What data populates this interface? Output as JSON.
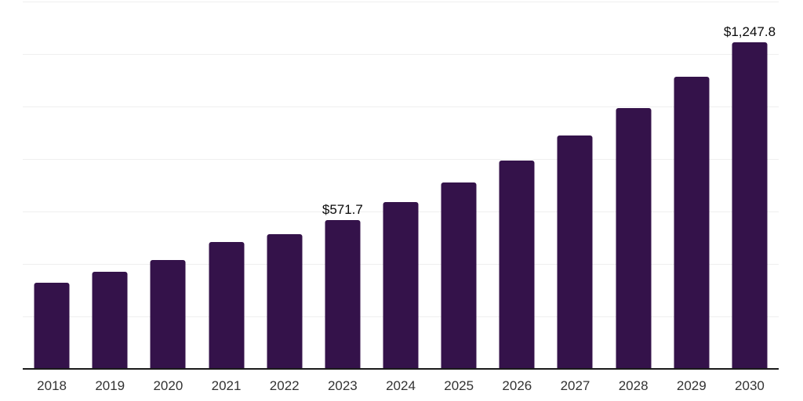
{
  "chart_data": {
    "type": "bar",
    "title": "",
    "xlabel": "",
    "ylabel": "",
    "categories": [
      "2018",
      "2019",
      "2020",
      "2021",
      "2022",
      "2023",
      "2024",
      "2025",
      "2026",
      "2027",
      "2028",
      "2029",
      "2030"
    ],
    "values": [
      330.4,
      374.1,
      418.8,
      487.5,
      516.4,
      571.7,
      639.1,
      714.4,
      798.6,
      892.7,
      997.9,
      1115.4,
      1247.8
    ],
    "data_labels": [
      {
        "category": "2023",
        "text": "$571.7"
      },
      {
        "category": "2030",
        "text": "$1,247.8"
      }
    ],
    "ylim": [
      0,
      1400
    ],
    "grid_step": 200,
    "grid": true,
    "legend": false,
    "colors": {
      "bar": "#34124A",
      "gridline": "#efefef",
      "axis_line": "#1a1a1a",
      "tick_label": "#333333",
      "data_label": "#0a0a0a",
      "background": "#ffffff"
    }
  }
}
